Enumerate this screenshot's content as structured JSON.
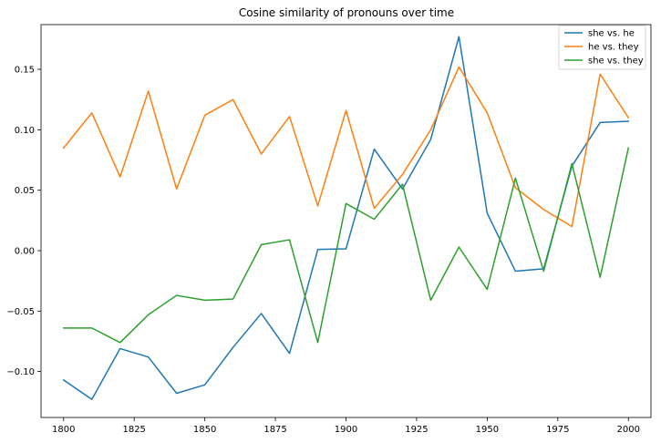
{
  "chart_data": {
    "type": "line",
    "title": "Cosine similarity of pronouns over time",
    "xlabel": "",
    "ylabel": "",
    "x": [
      1800,
      1810,
      1820,
      1830,
      1840,
      1850,
      1860,
      1870,
      1880,
      1890,
      1900,
      1910,
      1920,
      1930,
      1940,
      1950,
      1960,
      1970,
      1980,
      1990,
      2000
    ],
    "xlim": [
      1792,
      2008
    ],
    "ylim": [
      -0.138,
      0.187
    ],
    "xticks": [
      1800,
      1825,
      1850,
      1875,
      1900,
      1925,
      1950,
      1975,
      2000
    ],
    "yticks": [
      -0.1,
      -0.05,
      0.0,
      0.05,
      0.1,
      0.15
    ],
    "ytick_labels": [
      "−0.10",
      "−0.05",
      "0.00",
      "0.05",
      "0.10",
      "0.15"
    ],
    "grid": false,
    "legend_position": "top-right",
    "series": [
      {
        "name": "she vs. he",
        "color": "#1f77b4",
        "values": [
          -0.107,
          -0.123,
          -0.081,
          -0.088,
          -0.118,
          -0.111,
          -0.08,
          -0.052,
          -0.085,
          0.001,
          0.0015,
          0.084,
          0.051,
          0.092,
          0.177,
          0.031,
          -0.017,
          -0.015,
          0.07,
          0.106,
          0.107
        ]
      },
      {
        "name": "he vs. they",
        "color": "#ff7f0e",
        "values": [
          0.085,
          0.114,
          0.061,
          0.132,
          0.051,
          0.112,
          0.125,
          0.08,
          0.111,
          0.037,
          0.116,
          0.035,
          0.063,
          0.1,
          0.152,
          0.114,
          0.052,
          0.034,
          0.02,
          0.146,
          0.11
        ]
      },
      {
        "name": "she vs. they",
        "color": "#2ca02c",
        "values": [
          -0.064,
          -0.064,
          -0.076,
          -0.053,
          -0.037,
          -0.041,
          -0.04,
          0.005,
          0.009,
          -0.076,
          0.039,
          0.026,
          0.055,
          -0.041,
          0.003,
          -0.032,
          0.06,
          -0.017,
          0.072,
          -0.022,
          0.085
        ]
      }
    ]
  }
}
